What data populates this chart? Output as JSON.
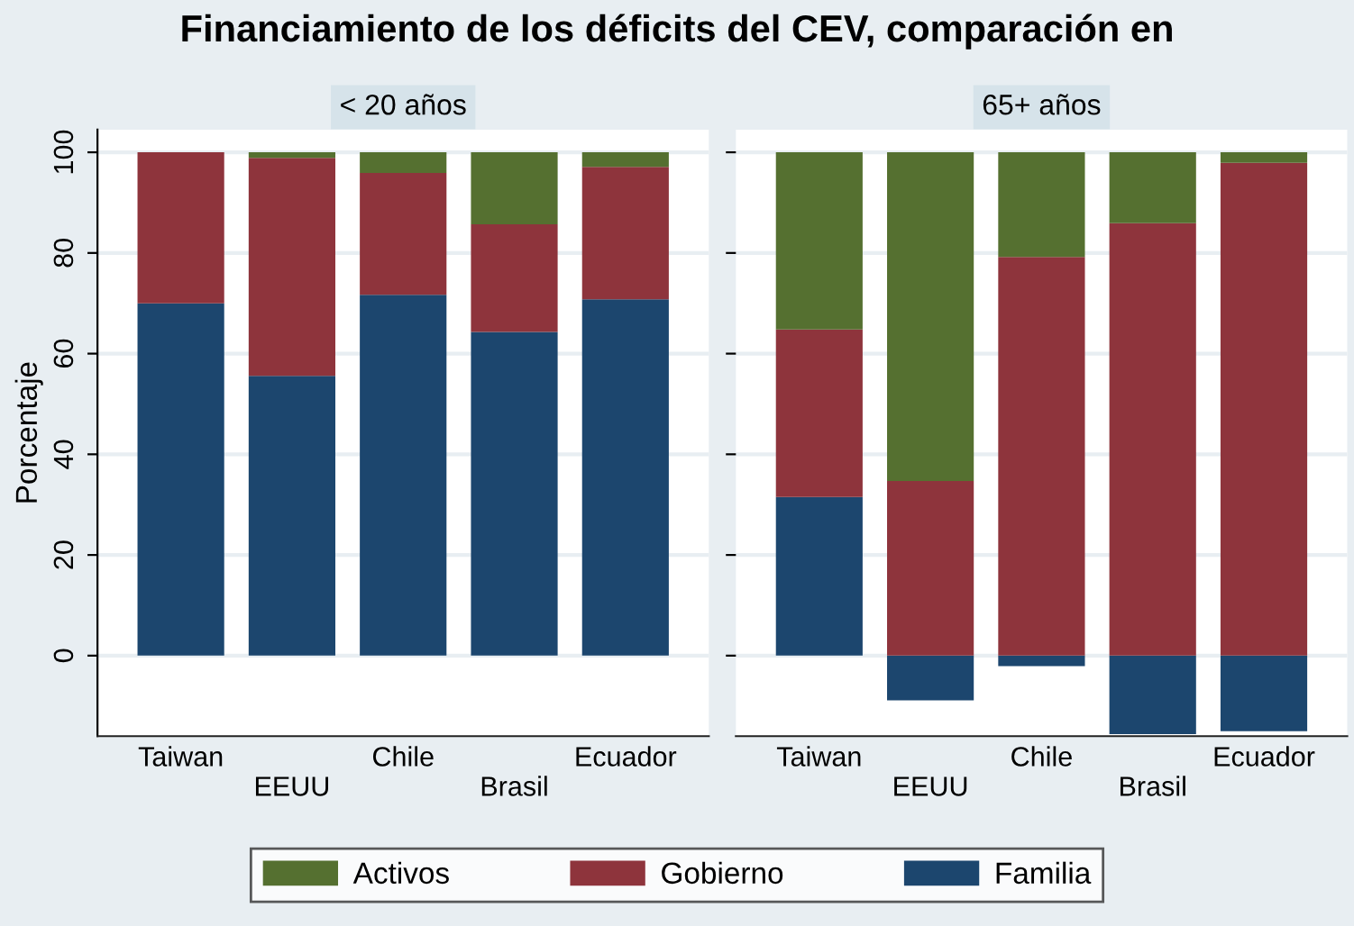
{
  "chart_data": [
    {
      "type": "bar",
      "title": "< 20 años",
      "ylabel": "Porcentaje",
      "stacked": true,
      "legend": "bottom",
      "grid": "y",
      "annotations": [
        "Financiamiento de los déficits del CEV, comparación en"
      ],
      "categories": [
        "Taiwan",
        "EEUU",
        "Chile",
        "Brasil",
        "Ecuador"
      ],
      "ylim": [
        -16,
        104.5
      ],
      "yticks": [
        0,
        20,
        40,
        60,
        80,
        100
      ],
      "series": [
        {
          "name": "Familia",
          "color": "#1c466e",
          "values": [
            70,
            55.6,
            71.7,
            64.3,
            70.8
          ]
        },
        {
          "name": "Gobierno",
          "color": "#8e343c",
          "values": [
            30,
            43.3,
            24.2,
            21.4,
            26.3
          ]
        },
        {
          "name": "Activos",
          "color": "#557030",
          "values": [
            0,
            1.1,
            4.1,
            14.3,
            2.9
          ]
        }
      ]
    },
    {
      "type": "bar",
      "title": "65+ años",
      "stacked": true,
      "grid": "y",
      "tick_labels": "x",
      "categories": [
        "Taiwan",
        "EEUU",
        "Chile",
        "Brasil",
        "Ecuador"
      ],
      "ylim": [
        -16,
        104.5
      ],
      "yticks": [
        0,
        20,
        40,
        60,
        80,
        100
      ],
      "series": [
        {
          "color": "#1c466e",
          "values": [
            31.5,
            -8.9,
            -2.1,
            -15.6,
            -15.0
          ]
        },
        {
          "color": "#8e343c",
          "values": [
            33.3,
            34.7,
            79.2,
            85.9,
            97.9
          ]
        },
        {
          "color": "#557030",
          "values": [
            35.2,
            65.3,
            20.8,
            14.1,
            2.1
          ]
        }
      ]
    }
  ]
}
